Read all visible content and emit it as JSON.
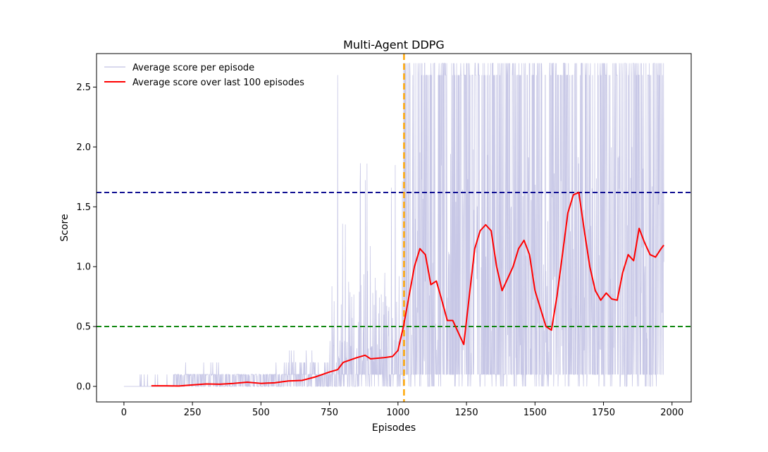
{
  "chart_data": {
    "type": "line",
    "title": "Multi-Agent DDPG",
    "xlabel": "Episodes",
    "ylabel": "Score",
    "xlim": [
      -100,
      2070
    ],
    "ylim": [
      -0.13,
      2.78
    ],
    "xticks": [
      0,
      250,
      500,
      750,
      1000,
      1250,
      1500,
      1750,
      2000
    ],
    "yticks": [
      0.0,
      0.5,
      1.0,
      1.5,
      2.0,
      2.5
    ],
    "xtick_labels": [
      "0",
      "250",
      "500",
      "750",
      "1000",
      "1250",
      "1500",
      "1750",
      "2000"
    ],
    "ytick_labels": [
      "0.0",
      "0.5",
      "1.0",
      "1.5",
      "2.0",
      "2.5"
    ],
    "grid": false,
    "legend_position": "top-left",
    "series": [
      {
        "name": "Average score per episode",
        "color": "#00008b",
        "style": "thin line, low opacity",
        "x_range": [
          0,
          1970
        ],
        "approx_ranges": [
          {
            "x": [
              0,
              180
            ],
            "min": 0.0,
            "max": 0.1
          },
          {
            "x": [
              180,
              750
            ],
            "min": 0.0,
            "max": 0.3
          },
          {
            "x": [
              780,
              780
            ],
            "min": 0.0,
            "max": 2.6
          },
          {
            "x": [
              750,
              1000
            ],
            "min": 0.0,
            "max": 1.9
          },
          {
            "x": [
              1020,
              1970
            ],
            "min": 0.0,
            "max": 2.7
          }
        ]
      },
      {
        "name": "Average score over last 100 episodes",
        "color": "#ff0000",
        "x": [
          100,
          150,
          200,
          250,
          300,
          350,
          400,
          450,
          500,
          550,
          600,
          650,
          700,
          750,
          780,
          800,
          850,
          880,
          900,
          950,
          980,
          1000,
          1010,
          1020,
          1040,
          1060,
          1080,
          1100,
          1120,
          1140,
          1160,
          1180,
          1200,
          1220,
          1240,
          1250,
          1260,
          1280,
          1300,
          1320,
          1340,
          1360,
          1380,
          1400,
          1420,
          1440,
          1460,
          1480,
          1500,
          1520,
          1540,
          1560,
          1580,
          1600,
          1620,
          1640,
          1660,
          1680,
          1700,
          1720,
          1740,
          1760,
          1780,
          1800,
          1820,
          1840,
          1860,
          1880,
          1900,
          1920,
          1940,
          1960,
          1970
        ],
        "values": [
          0.005,
          0.005,
          0.003,
          0.012,
          0.02,
          0.018,
          0.025,
          0.035,
          0.025,
          0.03,
          0.045,
          0.05,
          0.08,
          0.12,
          0.14,
          0.2,
          0.24,
          0.26,
          0.23,
          0.24,
          0.25,
          0.3,
          0.4,
          0.5,
          0.75,
          1.0,
          1.15,
          1.1,
          0.85,
          0.88,
          0.72,
          0.55,
          0.55,
          0.45,
          0.35,
          0.55,
          0.75,
          1.15,
          1.3,
          1.35,
          1.3,
          1.0,
          0.8,
          0.9,
          1.0,
          1.15,
          1.22,
          1.1,
          0.8,
          0.65,
          0.5,
          0.47,
          0.75,
          1.1,
          1.45,
          1.6,
          1.62,
          1.3,
          1.0,
          0.8,
          0.72,
          0.78,
          0.73,
          0.72,
          0.95,
          1.1,
          1.05,
          1.32,
          1.2,
          1.1,
          1.08,
          1.15,
          1.18
        ]
      }
    ],
    "reference_lines": [
      {
        "orientation": "horizontal",
        "y": 1.62,
        "color": "#00008b",
        "style": "dashed"
      },
      {
        "orientation": "horizontal",
        "y": 0.5,
        "color": "#008000",
        "style": "dashed"
      },
      {
        "orientation": "vertical",
        "x": 1022,
        "color": "#ffa500",
        "style": "dashed"
      }
    ]
  }
}
